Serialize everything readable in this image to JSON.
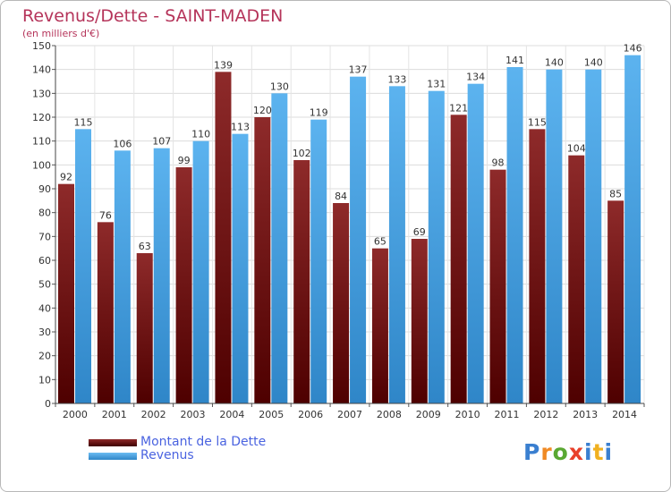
{
  "title": "Revenus/Dette - SAINT-MADEN",
  "subtitle": "(en milliers d'€)",
  "colors": {
    "debt": "#7a1414",
    "revenue": "#4ea6e6",
    "title": "#b5345a",
    "legend_text": "#4a63e0"
  },
  "legend": {
    "debt_label": "Montant de la Dette",
    "revenue_label": "Revenus"
  },
  "logo_text": "Proxiti",
  "chart_data": {
    "type": "bar",
    "title": "Revenus/Dette - SAINT-MADEN",
    "subtitle": "(en milliers d'€)",
    "categories": [
      "2000",
      "2001",
      "2002",
      "2003",
      "2004",
      "2005",
      "2006",
      "2007",
      "2008",
      "2009",
      "2010",
      "2011",
      "2012",
      "2013",
      "2014"
    ],
    "series": [
      {
        "name": "Montant de la Dette",
        "values": [
          92,
          76,
          63,
          99,
          139,
          120,
          102,
          84,
          65,
          69,
          121,
          98,
          115,
          104,
          85
        ]
      },
      {
        "name": "Revenus",
        "values": [
          115,
          106,
          107,
          110,
          113,
          130,
          119,
          137,
          133,
          131,
          134,
          141,
          140,
          140,
          146
        ]
      }
    ],
    "ylim": [
      0,
      150
    ],
    "yticks": [
      0,
      10,
      20,
      30,
      40,
      50,
      60,
      70,
      80,
      90,
      100,
      110,
      120,
      130,
      140,
      150
    ],
    "grid": true,
    "legend_position": "bottom-left"
  }
}
